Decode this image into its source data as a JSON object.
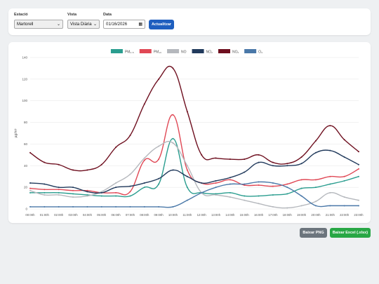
{
  "form": {
    "station_label": "Estació",
    "station_value": "Martorell",
    "view_label": "Vista",
    "view_value": "Vista Diària",
    "date_label": "Data",
    "date_value": "01/16/2026",
    "update_button": "Actualitzar"
  },
  "chart_data": {
    "type": "line",
    "y_label": "µg/m³",
    "categories": [
      "00:00h",
      "01:00h",
      "02:00h",
      "03:00h",
      "04:00h",
      "05:00h",
      "06:00h",
      "07:00h",
      "08:00h",
      "09:00h",
      "10:00h",
      "11:00h",
      "12:00h",
      "13:00h",
      "14:00h",
      "15:00h",
      "16:00h",
      "17:00h",
      "18:00h",
      "19:00h",
      "20:00h",
      "21:00h",
      "22:00h",
      "23:00h"
    ],
    "series": [
      {
        "name": "PM₂.₅",
        "color": "#2a9d8f",
        "values": [
          15,
          15,
          15,
          14,
          13,
          12,
          12,
          12,
          20,
          23,
          65,
          20,
          15,
          14,
          15,
          12,
          12,
          13,
          14,
          19,
          20,
          23,
          26,
          30
        ]
      },
      {
        "name": "PM₁₀",
        "color": "#e04855",
        "values": [
          19,
          18,
          18,
          17,
          17,
          15,
          15,
          16,
          45,
          46,
          87,
          36,
          24,
          24,
          27,
          22,
          22,
          21,
          23,
          27,
          27,
          30,
          30,
          37
        ]
      },
      {
        "name": "NO",
        "color": "#b5b8bd",
        "values": [
          17,
          13,
          13,
          11,
          12,
          16,
          24,
          32,
          47,
          58,
          61,
          40,
          15,
          13,
          11,
          8,
          5,
          2,
          1,
          3,
          7,
          15,
          11,
          8
        ]
      },
      {
        "name": "NO₂",
        "color": "#213a5c",
        "values": [
          24,
          23,
          20,
          20,
          16,
          15,
          20,
          21,
          24,
          28,
          36,
          30,
          24,
          26,
          29,
          34,
          43,
          40,
          40,
          42,
          52,
          54,
          48,
          41
        ]
      },
      {
        "name": "NOₓ",
        "color": "#6e0f1f",
        "values": [
          52,
          43,
          41,
          36,
          36,
          41,
          57,
          68,
          97,
          120,
          130,
          90,
          50,
          47,
          46,
          46,
          50,
          43,
          42,
          48,
          63,
          77,
          64,
          53
        ]
      },
      {
        "name": "O₃",
        "color": "#4a78a8",
        "values": [
          2,
          2,
          2,
          2,
          2,
          2,
          2,
          2,
          2,
          2,
          2,
          8,
          15,
          20,
          23,
          23,
          25,
          24,
          20,
          12,
          3,
          3,
          3,
          3
        ]
      }
    ],
    "ylim": [
      0,
      140
    ],
    "yticks": [
      0,
      20,
      40,
      60,
      80,
      100,
      120,
      140
    ],
    "grid": true
  },
  "downloads": {
    "png_button": "Baixar PNG",
    "excel_button": "Baixar Excel (.xlsx)"
  }
}
